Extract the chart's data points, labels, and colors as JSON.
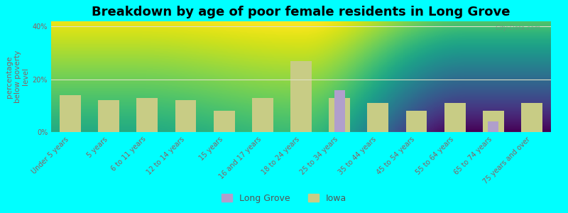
{
  "title": "Breakdown by age of poor female residents in Long Grove",
  "ylabel": "percentage\nbelow poverty\nlevel",
  "categories": [
    "Under 5 years",
    "5 years",
    "6 to 11 years",
    "12 to 14 years",
    "15 years",
    "16 and 17 years",
    "18 to 24 years",
    "25 to 34 years",
    "35 to 44 years",
    "45 to 54 years",
    "55 to 64 years",
    "65 to 74 years",
    "75 years and over"
  ],
  "iowa_values": [
    14,
    12,
    13,
    12,
    8,
    13,
    27,
    13,
    11,
    8,
    11,
    8,
    11
  ],
  "long_grove_values": [
    0,
    0,
    0,
    0,
    0,
    0,
    0,
    16,
    0,
    0,
    0,
    4,
    0
  ],
  "iowa_color": "#c8cc85",
  "long_grove_color": "#b09fcc",
  "ylim": [
    0,
    42
  ],
  "yticks": [
    0,
    20,
    40
  ],
  "ytick_labels": [
    "0%",
    "20%",
    "40%"
  ],
  "iowa_bar_width": 0.55,
  "lg_bar_width": 0.28,
  "watermark": "City-Data.com",
  "bg_color": "#00ffff",
  "title_fontsize": 13,
  "axis_label_fontsize": 7.5,
  "tick_fontsize": 7,
  "legend_fontsize": 9,
  "grid_color": "#e0e0c8",
  "tick_color": "#8b6060",
  "plot_bg_top": "#d8ddb0",
  "plot_bg_bottom": "#f0f2e0"
}
